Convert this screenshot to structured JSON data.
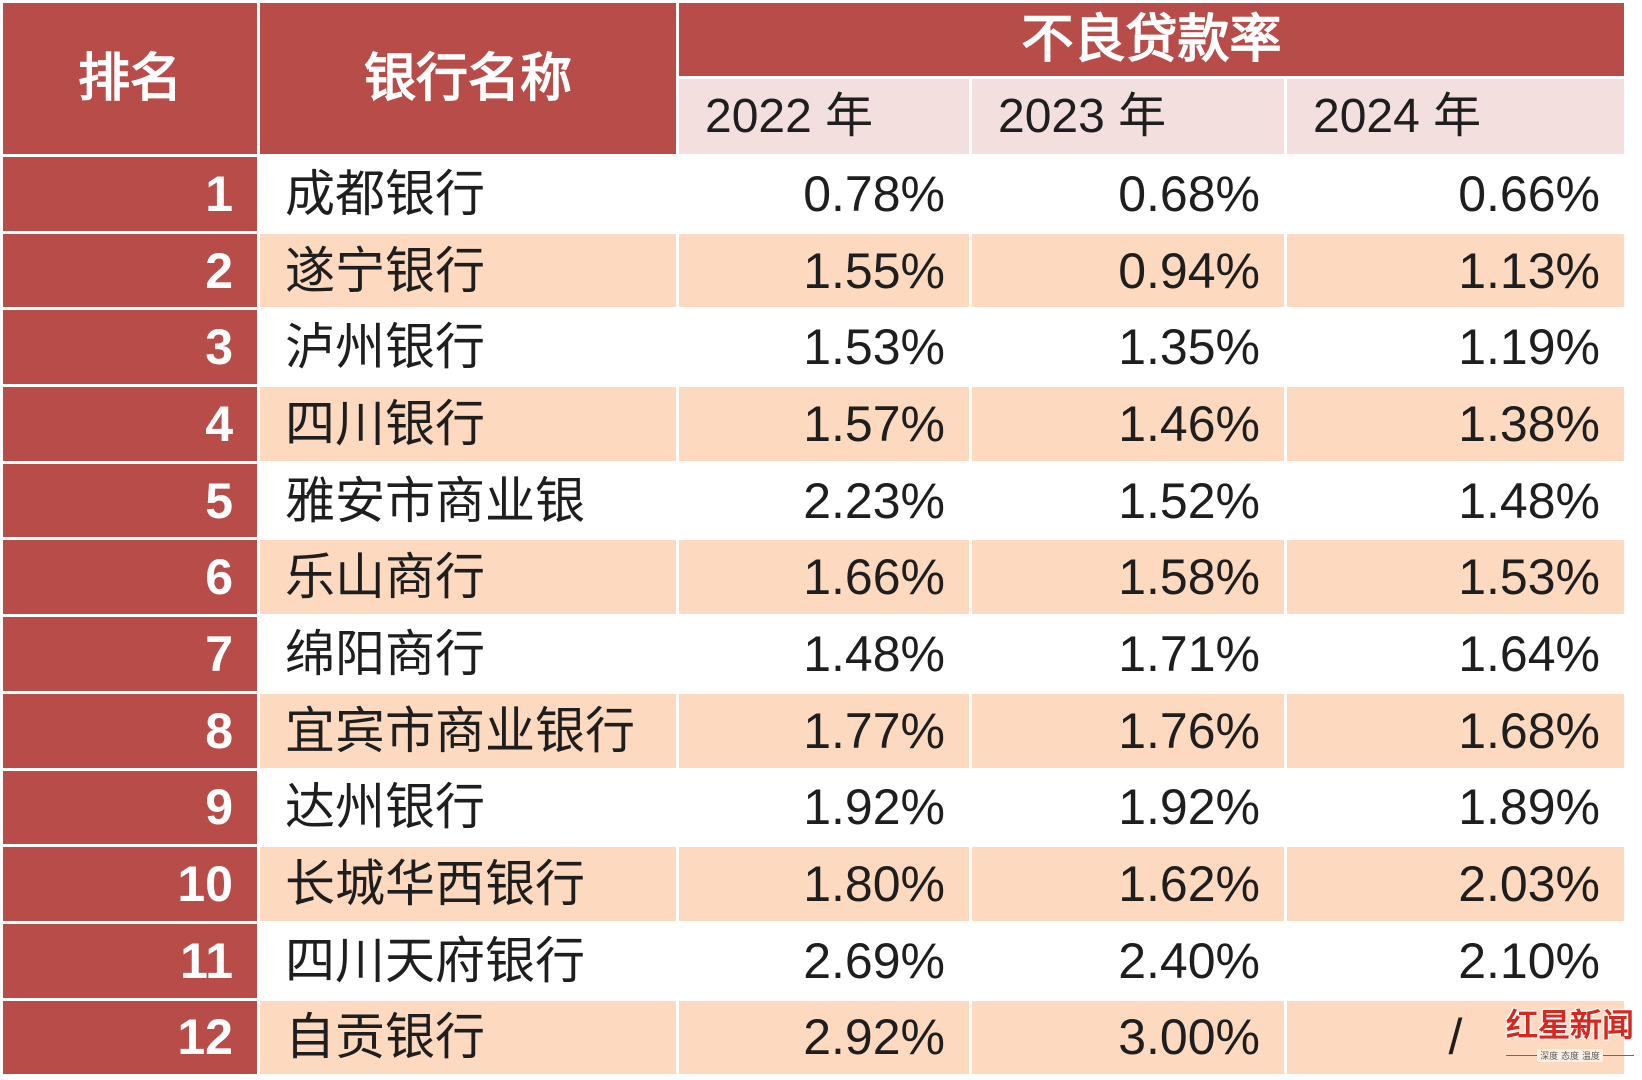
{
  "colors": {
    "header_red": "#b84c49",
    "year_header_bg": "#f2dfde",
    "band_peach": "#fcd9bf",
    "row_white": "#ffffff",
    "header_text": "#ffffff",
    "body_text": "#1e1e1e",
    "logo_red": "#d7281f"
  },
  "chart_data": {
    "type": "table",
    "group_header": "不良贷款率",
    "columns": [
      "排名",
      "银行名称",
      "2022 年",
      "2023 年",
      "2024 年"
    ],
    "rows": [
      [
        "1",
        "成都银行",
        "0.78%",
        "0.68%",
        "0.66%"
      ],
      [
        "2",
        "遂宁银行",
        "1.55%",
        "0.94%",
        "1.13%"
      ],
      [
        "3",
        "泸州银行",
        "1.53%",
        "1.35%",
        "1.19%"
      ],
      [
        "4",
        "四川银行",
        "1.57%",
        "1.46%",
        "1.38%"
      ],
      [
        "5",
        "雅安市商业银",
        "2.23%",
        "1.52%",
        "1.48%"
      ],
      [
        "6",
        "乐山商行",
        "1.66%",
        "1.58%",
        "1.53%"
      ],
      [
        "7",
        "绵阳商行",
        "1.48%",
        "1.71%",
        "1.64%"
      ],
      [
        "8",
        "宜宾市商业银行",
        "1.77%",
        "1.76%",
        "1.68%"
      ],
      [
        "9",
        "达州银行",
        "1.92%",
        "1.92%",
        "1.89%"
      ],
      [
        "10",
        "长城华西银行",
        "1.80%",
        "1.62%",
        "2.03%"
      ],
      [
        "11",
        "四川天府银行",
        "2.69%",
        "2.40%",
        "2.10%"
      ],
      [
        "12",
        "自贡银行",
        "2.92%",
        "3.00%",
        "/"
      ]
    ]
  },
  "watermark": {
    "logo_text": "红星新闻",
    "slogan": "深度 态度 温度"
  }
}
